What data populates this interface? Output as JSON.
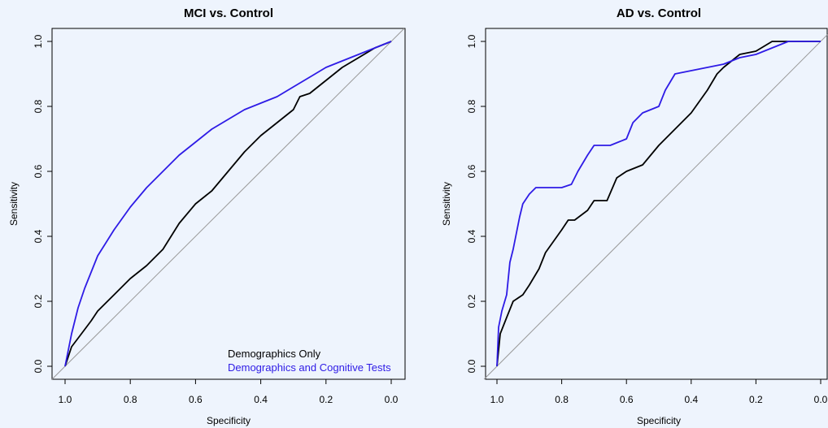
{
  "colors": {
    "background": "#eef4fd",
    "demographics_only": "#000000",
    "demographics_cognitive": "#2e1be6",
    "reference": "#999999"
  },
  "chart_data": [
    {
      "type": "line",
      "title": "MCI vs. Control",
      "xlabel": "Specificity",
      "ylabel": "Sensitivity",
      "xlim": [
        1.0,
        0.0
      ],
      "ylim": [
        0.0,
        1.0
      ],
      "x_reversed": true,
      "xticks": [
        "1.0",
        "0.8",
        "0.6",
        "0.4",
        "0.2",
        "0.0"
      ],
      "yticks": [
        "0.0",
        "0.2",
        "0.4",
        "0.6",
        "0.8",
        "1.0"
      ],
      "grid": false,
      "legend": {
        "placement": "bottom-right",
        "entries": [
          "Demographics Only",
          "Demographics and Cognitive Tests"
        ]
      },
      "series": [
        {
          "name": "Demographics Only",
          "color": "#000000",
          "x": [
            1.0,
            0.98,
            0.95,
            0.92,
            0.9,
            0.85,
            0.8,
            0.75,
            0.7,
            0.65,
            0.6,
            0.55,
            0.5,
            0.45,
            0.4,
            0.35,
            0.3,
            0.28,
            0.25,
            0.2,
            0.15,
            0.1,
            0.05,
            0.0
          ],
          "y": [
            0.0,
            0.06,
            0.1,
            0.14,
            0.17,
            0.22,
            0.27,
            0.31,
            0.36,
            0.44,
            0.5,
            0.54,
            0.6,
            0.66,
            0.71,
            0.75,
            0.79,
            0.83,
            0.84,
            0.88,
            0.92,
            0.95,
            0.98,
            1.0
          ]
        },
        {
          "name": "Demographics and Cognitive Tests",
          "color": "#2e1be6",
          "x": [
            1.0,
            0.98,
            0.96,
            0.94,
            0.92,
            0.9,
            0.85,
            0.8,
            0.75,
            0.7,
            0.65,
            0.6,
            0.55,
            0.5,
            0.45,
            0.4,
            0.35,
            0.3,
            0.25,
            0.2,
            0.15,
            0.1,
            0.05,
            0.0
          ],
          "y": [
            0.0,
            0.1,
            0.18,
            0.24,
            0.29,
            0.34,
            0.42,
            0.49,
            0.55,
            0.6,
            0.65,
            0.69,
            0.73,
            0.76,
            0.79,
            0.81,
            0.83,
            0.86,
            0.89,
            0.92,
            0.94,
            0.96,
            0.98,
            1.0
          ]
        }
      ]
    },
    {
      "type": "line",
      "title": "AD vs. Control",
      "xlabel": "Specificity",
      "ylabel": "Sensitivity",
      "xlim": [
        1.0,
        0.0
      ],
      "ylim": [
        0.0,
        1.0
      ],
      "x_reversed": true,
      "xticks": [
        "1.0",
        "0.8",
        "0.6",
        "0.4",
        "0.2",
        "0.0"
      ],
      "yticks": [
        "0.0",
        "0.2",
        "0.4",
        "0.6",
        "0.8",
        "1.0"
      ],
      "grid": false,
      "series": [
        {
          "name": "Demographics Only",
          "color": "#000000",
          "x": [
            1.0,
            0.99,
            0.97,
            0.95,
            0.92,
            0.9,
            0.87,
            0.85,
            0.8,
            0.78,
            0.76,
            0.72,
            0.7,
            0.66,
            0.63,
            0.6,
            0.55,
            0.5,
            0.45,
            0.4,
            0.35,
            0.32,
            0.3,
            0.25,
            0.2,
            0.15,
            0.1,
            0.05,
            0.0
          ],
          "y": [
            0.0,
            0.1,
            0.15,
            0.2,
            0.22,
            0.25,
            0.3,
            0.35,
            0.42,
            0.45,
            0.45,
            0.48,
            0.51,
            0.51,
            0.58,
            0.6,
            0.62,
            0.68,
            0.73,
            0.78,
            0.85,
            0.9,
            0.92,
            0.96,
            0.97,
            1.0,
            1.0,
            1.0,
            1.0
          ]
        },
        {
          "name": "Demographics and Cognitive Tests",
          "color": "#2e1be6",
          "x": [
            1.0,
            0.995,
            0.985,
            0.97,
            0.96,
            0.95,
            0.94,
            0.93,
            0.92,
            0.9,
            0.88,
            0.85,
            0.8,
            0.77,
            0.75,
            0.72,
            0.7,
            0.65,
            0.6,
            0.58,
            0.55,
            0.5,
            0.48,
            0.45,
            0.4,
            0.3,
            0.25,
            0.2,
            0.15,
            0.1,
            0.05,
            0.0
          ],
          "y": [
            0.0,
            0.12,
            0.17,
            0.22,
            0.32,
            0.36,
            0.41,
            0.46,
            0.5,
            0.53,
            0.55,
            0.55,
            0.55,
            0.56,
            0.6,
            0.65,
            0.68,
            0.68,
            0.7,
            0.75,
            0.78,
            0.8,
            0.85,
            0.9,
            0.91,
            0.93,
            0.95,
            0.96,
            0.98,
            1.0,
            1.0,
            1.0
          ]
        }
      ]
    }
  ]
}
